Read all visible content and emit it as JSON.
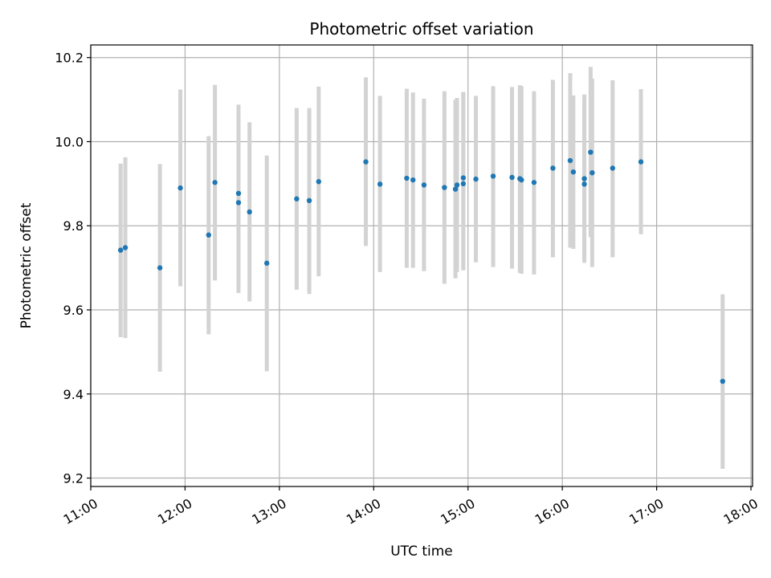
{
  "chart_data": {
    "type": "scatter",
    "title": "Photometric offset variation",
    "xlabel": "UTC time",
    "ylabel": "Photometric offset",
    "x_ticks": [
      "11:00",
      "12:00",
      "13:00",
      "14:00",
      "15:00",
      "16:00",
      "17:00",
      "18:00"
    ],
    "y_ticks": [
      "9.2",
      "9.4",
      "9.6",
      "9.8",
      "10.0",
      "10.2"
    ],
    "xlim": [
      "11:00",
      "18:01"
    ],
    "ylim": [
      9.18,
      10.23
    ],
    "grid": true,
    "colors": {
      "point": "#1f77b4",
      "errorbar": "#d3d3d3",
      "grid": "#b0b0b0"
    },
    "points": [
      {
        "x": "11:19",
        "y": 9.742,
        "lo": 9.535,
        "hi": 9.948
      },
      {
        "x": "11:22",
        "y": 9.748,
        "lo": 9.533,
        "hi": 9.963
      },
      {
        "x": "11:44",
        "y": 9.7,
        "lo": 9.453,
        "hi": 9.947
      },
      {
        "x": "11:57",
        "y": 9.89,
        "lo": 9.656,
        "hi": 10.124
      },
      {
        "x": "12:15",
        "y": 9.778,
        "lo": 9.542,
        "hi": 10.013
      },
      {
        "x": "12:19",
        "y": 9.903,
        "lo": 9.67,
        "hi": 10.135
      },
      {
        "x": "12:34",
        "y": 9.855,
        "lo": 9.64,
        "hi": 10.088
      },
      {
        "x": "12:34",
        "y": 9.877,
        "lo": 9.66,
        "hi": 10.07
      },
      {
        "x": "12:41",
        "y": 9.833,
        "lo": 9.62,
        "hi": 10.046
      },
      {
        "x": "12:52",
        "y": 9.711,
        "lo": 9.454,
        "hi": 9.967
      },
      {
        "x": "13:11",
        "y": 9.864,
        "lo": 9.648,
        "hi": 10.08
      },
      {
        "x": "13:19",
        "y": 9.86,
        "lo": 9.638,
        "hi": 10.08
      },
      {
        "x": "13:25",
        "y": 9.905,
        "lo": 9.68,
        "hi": 10.131
      },
      {
        "x": "13:55",
        "y": 9.952,
        "lo": 9.752,
        "hi": 10.153
      },
      {
        "x": "14:04",
        "y": 9.899,
        "lo": 9.69,
        "hi": 10.109
      },
      {
        "x": "14:21",
        "y": 9.913,
        "lo": 9.7,
        "hi": 10.126
      },
      {
        "x": "14:25",
        "y": 9.909,
        "lo": 9.7,
        "hi": 10.117
      },
      {
        "x": "14:32",
        "y": 9.897,
        "lo": 9.692,
        "hi": 10.102
      },
      {
        "x": "14:45",
        "y": 9.891,
        "lo": 9.662,
        "hi": 10.12
      },
      {
        "x": "14:52",
        "y": 9.887,
        "lo": 9.675,
        "hi": 10.1
      },
      {
        "x": "14:53",
        "y": 9.897,
        "lo": 9.69,
        "hi": 10.104
      },
      {
        "x": "14:57",
        "y": 9.9,
        "lo": 9.694,
        "hi": 10.118
      },
      {
        "x": "14:57",
        "y": 9.914,
        "lo": 9.7,
        "hi": 10.118
      },
      {
        "x": "15:05",
        "y": 9.911,
        "lo": 9.713,
        "hi": 10.109
      },
      {
        "x": "15:16",
        "y": 9.918,
        "lo": 9.702,
        "hi": 10.132
      },
      {
        "x": "15:28",
        "y": 9.915,
        "lo": 9.698,
        "hi": 10.13
      },
      {
        "x": "15:33",
        "y": 9.912,
        "lo": 9.688,
        "hi": 10.134
      },
      {
        "x": "15:34",
        "y": 9.909,
        "lo": 9.686,
        "hi": 10.132
      },
      {
        "x": "15:42",
        "y": 9.903,
        "lo": 9.684,
        "hi": 10.12
      },
      {
        "x": "15:54",
        "y": 9.937,
        "lo": 9.725,
        "hi": 10.147
      },
      {
        "x": "16:05",
        "y": 9.955,
        "lo": 9.748,
        "hi": 10.163
      },
      {
        "x": "16:07",
        "y": 9.928,
        "lo": 9.745,
        "hi": 10.11
      },
      {
        "x": "16:14",
        "y": 9.912,
        "lo": 9.712,
        "hi": 10.112
      },
      {
        "x": "16:14",
        "y": 9.899,
        "lo": 9.715,
        "hi": 10.083
      },
      {
        "x": "16:18",
        "y": 9.975,
        "lo": 9.773,
        "hi": 10.178
      },
      {
        "x": "16:19",
        "y": 9.926,
        "lo": 9.702,
        "hi": 10.15
      },
      {
        "x": "16:32",
        "y": 9.937,
        "lo": 9.725,
        "hi": 10.146
      },
      {
        "x": "16:50",
        "y": 9.952,
        "lo": 9.78,
        "hi": 10.125
      },
      {
        "x": "17:42",
        "y": 9.43,
        "lo": 9.222,
        "hi": 9.637
      }
    ]
  }
}
